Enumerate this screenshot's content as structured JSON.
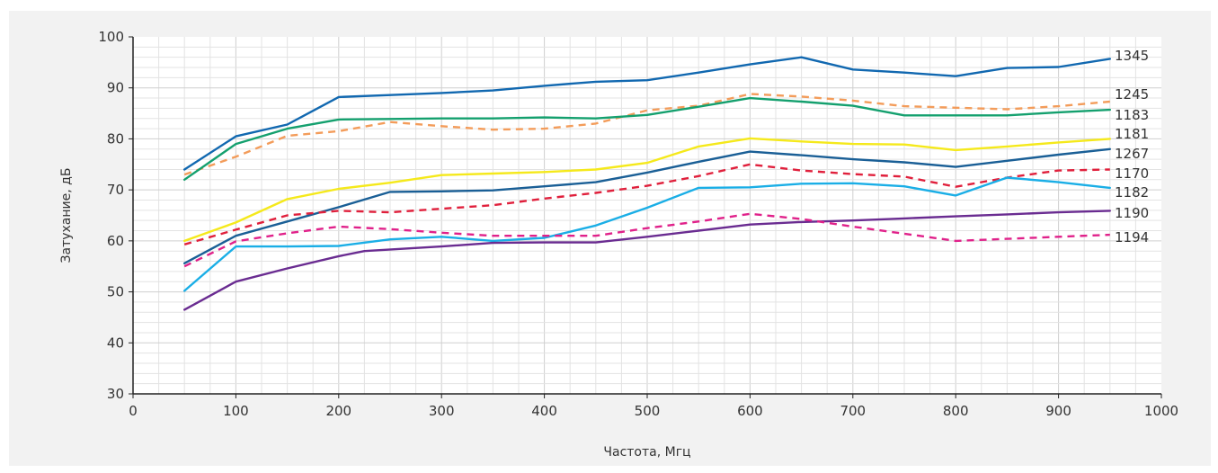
{
  "chart_data": {
    "type": "line",
    "title": "",
    "xlabel": "Частота, Мгц",
    "ylabel": "Затухание, дБ",
    "xlim": [
      0,
      1000
    ],
    "ylim": [
      30,
      100
    ],
    "x_ticks": [
      "0",
      "100",
      "200",
      "300",
      "400",
      "500",
      "600",
      "700",
      "800",
      "900",
      "1000"
    ],
    "y_ticks": [
      "30",
      "40",
      "50",
      "60",
      "70",
      "80",
      "90",
      "100"
    ],
    "grid": true,
    "legend": "series labels at right end of lines",
    "series": [
      {
        "name": "1345",
        "color": "#1168b0",
        "dashed": false,
        "x": [
          50,
          100,
          150,
          200,
          250,
          300,
          350,
          400,
          450,
          500,
          550,
          600,
          650,
          700,
          750,
          800,
          850,
          900,
          950
        ],
        "y": [
          74,
          80.5,
          82.8,
          88.2,
          88.6,
          89,
          89.5,
          90.4,
          91.2,
          91.5,
          93,
          94.6,
          96,
          93.6,
          93,
          92.3,
          93.9,
          94.1,
          95.7
        ]
      },
      {
        "name": "1245",
        "color": "#f39c5a",
        "dashed": true,
        "x": [
          50,
          100,
          150,
          200,
          250,
          300,
          350,
          400,
          450,
          500,
          550,
          600,
          650,
          700,
          750,
          800,
          850,
          900,
          950
        ],
        "y": [
          73,
          76.5,
          80.6,
          81.5,
          83.3,
          82.5,
          81.8,
          82,
          83,
          85.6,
          86.5,
          88.8,
          88.3,
          87.5,
          86.4,
          86.1,
          85.8,
          86.4,
          87.3
        ]
      },
      {
        "name": "1183",
        "color": "#14a06e",
        "dashed": false,
        "x": [
          50,
          100,
          150,
          200,
          250,
          300,
          350,
          400,
          450,
          500,
          550,
          600,
          650,
          700,
          750,
          800,
          850,
          900,
          950
        ],
        "y": [
          72,
          79,
          82,
          83.8,
          83.9,
          84,
          84,
          84.2,
          84,
          84.7,
          86.3,
          88,
          87.3,
          86.5,
          84.6,
          84.6,
          84.6,
          85.2,
          85.7
        ]
      },
      {
        "name": "1181",
        "color": "#f5e91b",
        "dashed": false,
        "x": [
          50,
          100,
          150,
          200,
          250,
          300,
          350,
          400,
          450,
          500,
          550,
          600,
          650,
          700,
          750,
          800,
          850,
          900,
          950
        ],
        "y": [
          60,
          63.6,
          68.2,
          70.2,
          71.4,
          72.9,
          73.2,
          73.5,
          74,
          75.3,
          78.5,
          80.1,
          79.5,
          79,
          78.9,
          77.8,
          78.5,
          79.3,
          80
        ]
      },
      {
        "name": "1267",
        "color": "#1a5f96",
        "dashed": false,
        "x": [
          50,
          100,
          150,
          200,
          250,
          300,
          350,
          400,
          450,
          500,
          550,
          600,
          650,
          700,
          750,
          800,
          850,
          900,
          950
        ],
        "y": [
          55.6,
          61,
          63.8,
          66.6,
          69.6,
          69.7,
          69.9,
          70.7,
          71.5,
          73.4,
          75.5,
          77.5,
          76.8,
          76,
          75.4,
          74.5,
          75.7,
          76.9,
          78
        ]
      },
      {
        "name": "1170",
        "color": "#e0203c",
        "dashed": true,
        "x": [
          50,
          100,
          150,
          200,
          250,
          300,
          350,
          400,
          450,
          500,
          550,
          600,
          650,
          700,
          750,
          800,
          850,
          900,
          950
        ],
        "y": [
          59.3,
          62.2,
          65,
          65.9,
          65.6,
          66.3,
          67,
          68.3,
          69.4,
          70.8,
          72.7,
          75,
          73.8,
          73.1,
          72.6,
          70.6,
          72.4,
          73.8,
          74
        ]
      },
      {
        "name": "1182",
        "color": "#1aaee6",
        "dashed": false,
        "x": [
          50,
          100,
          150,
          200,
          250,
          300,
          350,
          400,
          450,
          500,
          550,
          600,
          650,
          700,
          750,
          800,
          850,
          900,
          950
        ],
        "y": [
          50.2,
          58.9,
          58.9,
          59,
          60.3,
          60.8,
          60,
          60.6,
          63,
          66.5,
          70.4,
          70.5,
          71.2,
          71.3,
          70.7,
          68.9,
          72.4,
          71.5,
          70.4
        ]
      },
      {
        "name": "1190",
        "color": "#6a2c91",
        "dashed": false,
        "x": [
          50,
          100,
          150,
          200,
          225,
          300,
          350,
          400,
          450,
          500,
          550,
          600,
          650,
          700,
          750,
          800,
          850,
          900,
          950
        ],
        "y": [
          46.5,
          52,
          54.6,
          57,
          58,
          58.9,
          59.6,
          59.7,
          59.7,
          60.8,
          62,
          63.2,
          63.7,
          64,
          64.4,
          64.8,
          65.2,
          65.6,
          65.9
        ]
      },
      {
        "name": "1194",
        "color": "#e0218a",
        "dashed": true,
        "x": [
          50,
          100,
          150,
          200,
          250,
          300,
          350,
          400,
          450,
          500,
          550,
          600,
          650,
          700,
          750,
          800,
          850,
          900,
          950
        ],
        "y": [
          55,
          59.9,
          61.5,
          62.8,
          62.3,
          61.6,
          61,
          61,
          61,
          62.5,
          63.8,
          65.3,
          64.3,
          62.8,
          61.4,
          60,
          60.4,
          60.8,
          61.2
        ]
      }
    ]
  }
}
